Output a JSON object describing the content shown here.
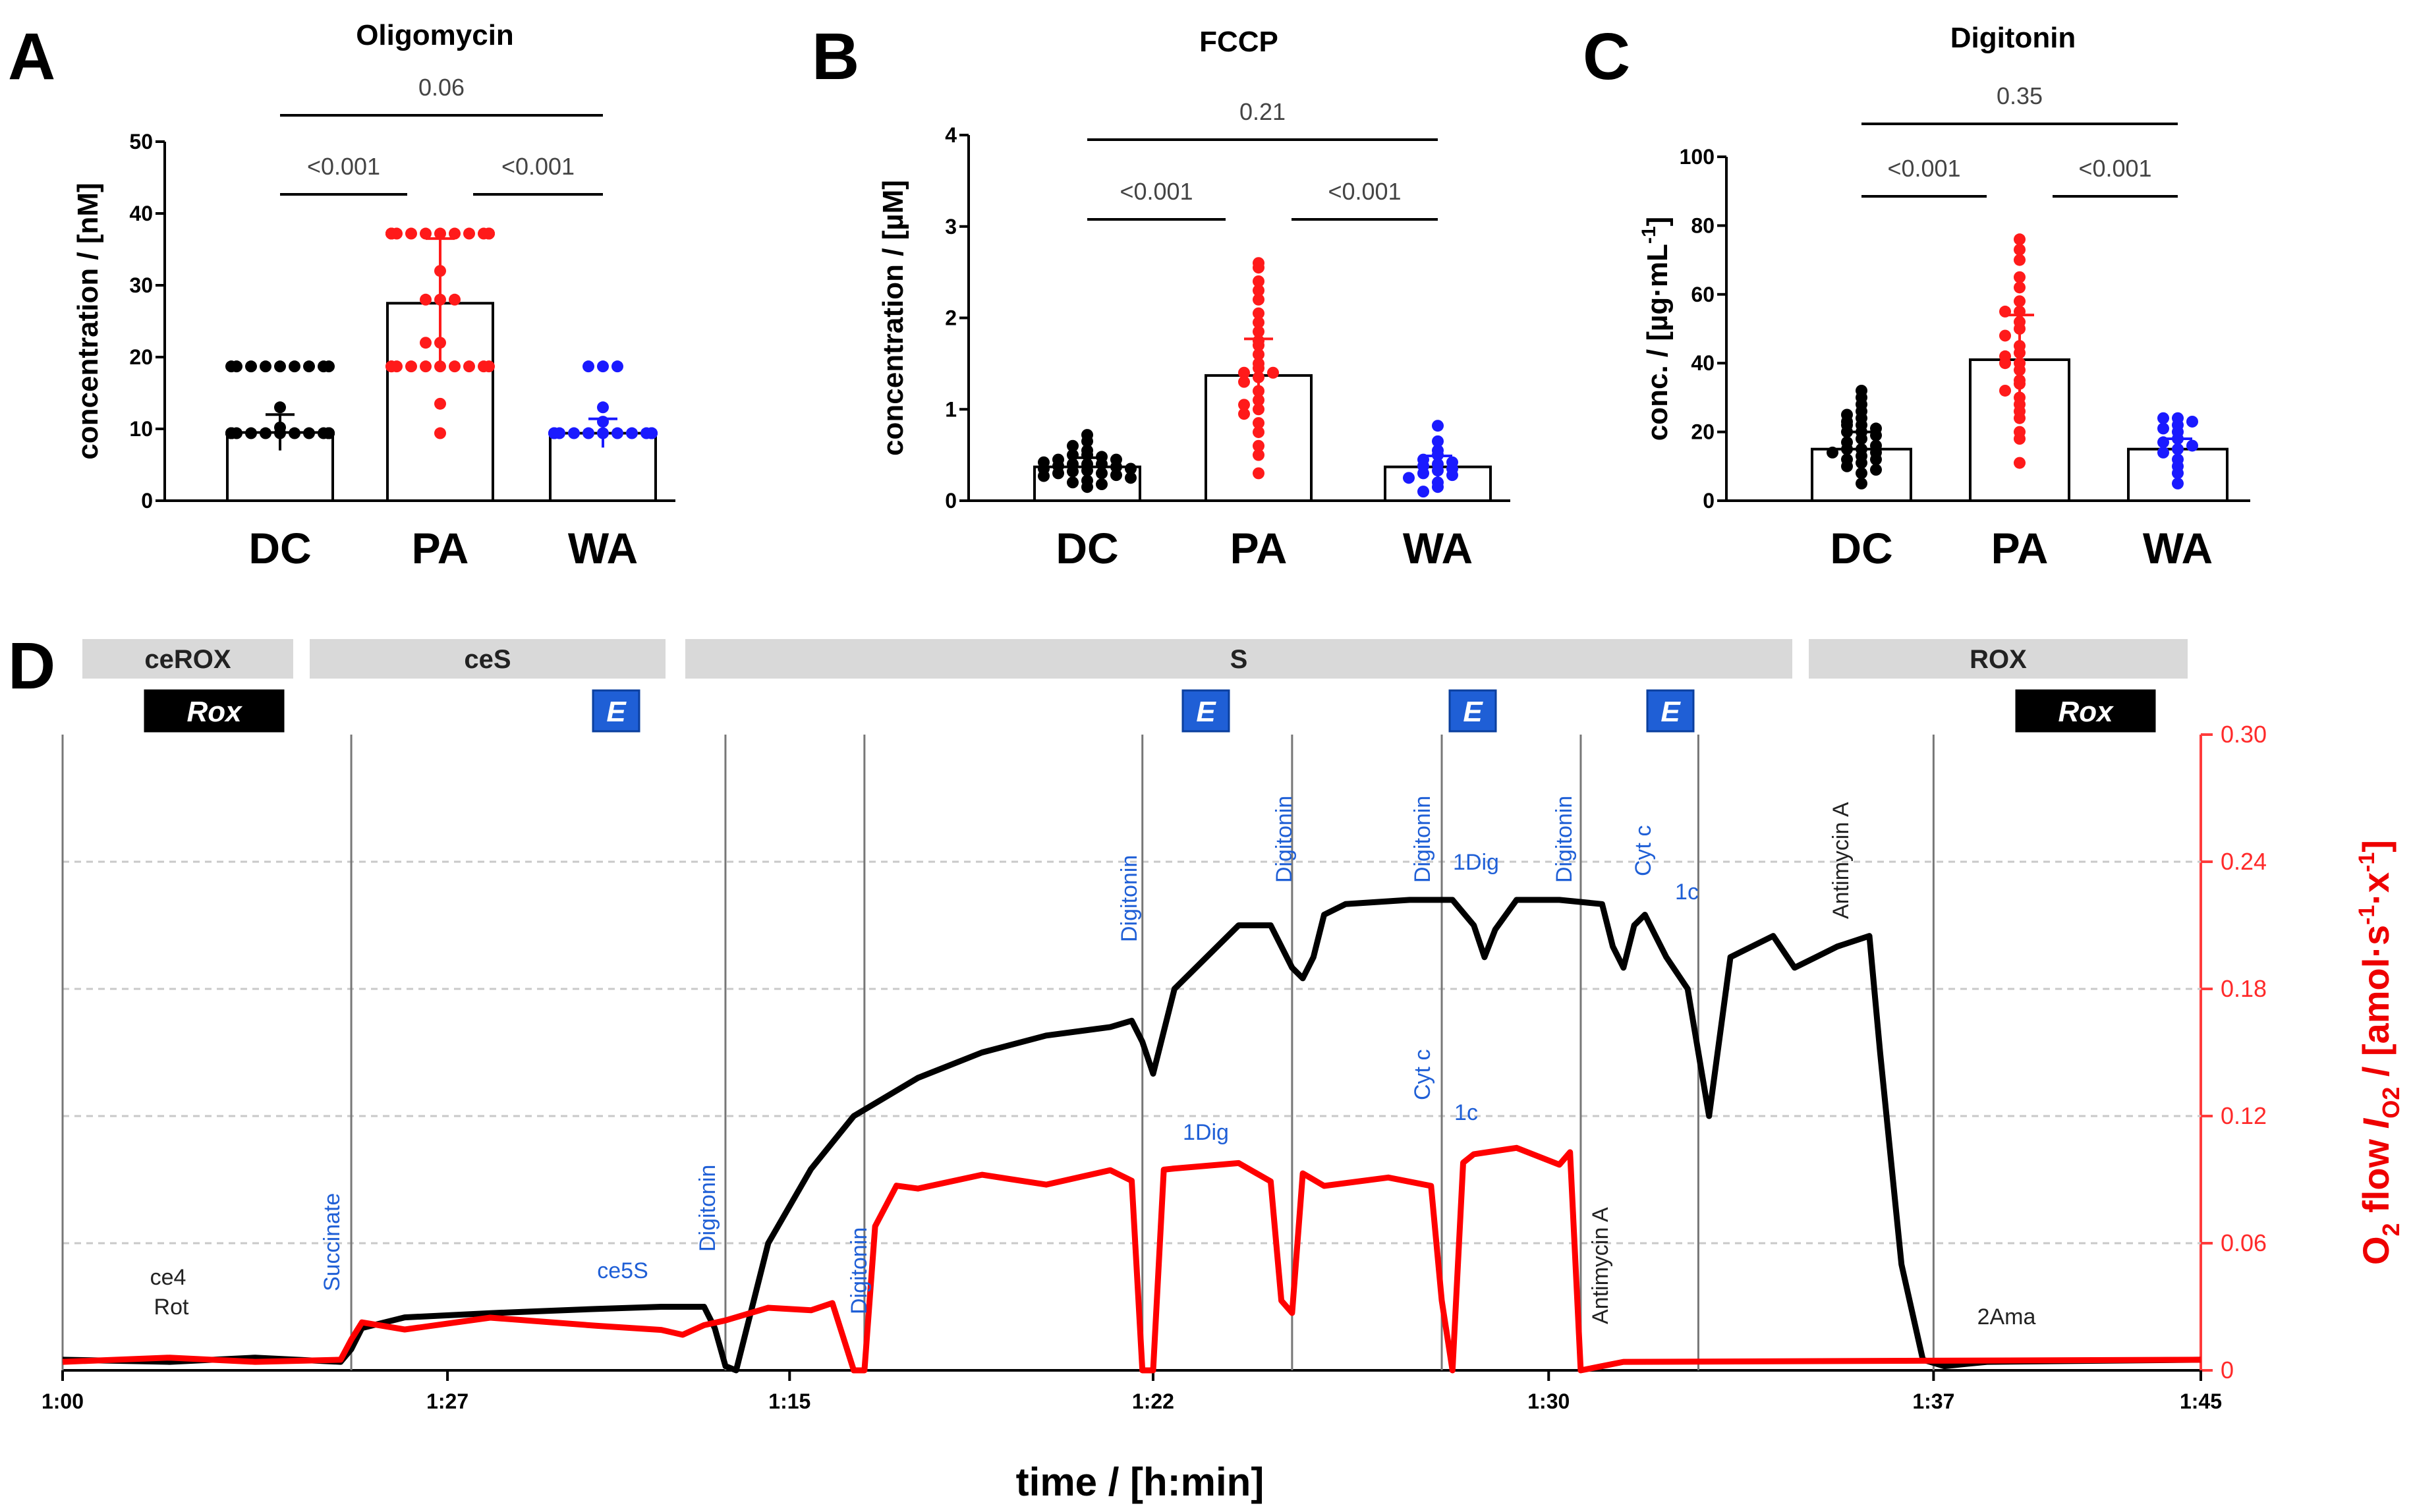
{
  "chart_data": [
    {
      "id": "A",
      "type": "bar",
      "title": "Oligomycin",
      "ylabel": "concentration / [nM]",
      "ylim": [
        0,
        50
      ],
      "yticks": [
        "0",
        "10",
        "20",
        "30",
        "40",
        "50"
      ],
      "categories": [
        "DC",
        "PA",
        "WA"
      ],
      "means": [
        9.5,
        27.5,
        9.4
      ],
      "sd": [
        2.5,
        9.0,
        2.0
      ],
      "colors": [
        "#000000",
        "#ff1a1a",
        "#1a1aff"
      ],
      "points": [
        [
          9.4,
          9.4,
          9.4,
          9.4,
          9.4,
          9.4,
          9.4,
          9.4,
          9.4,
          9.4,
          9.4,
          9.4,
          9.4,
          9.4,
          9.4,
          9.4,
          9.4,
          9.4,
          9.4,
          9.4,
          9.4,
          10.2,
          13.0,
          18.7,
          18.7,
          18.7,
          18.7,
          18.7,
          18.7,
          18.7,
          18.7,
          18.7
        ],
        [
          37.2,
          37.2,
          37.2,
          37.2,
          37.2,
          37.2,
          37.2,
          37.2,
          37.2,
          37.2,
          37.2,
          37.2,
          37.2,
          37.2,
          32.0,
          28.0,
          28.0,
          28.0,
          22.0,
          22.0,
          18.7,
          18.7,
          18.7,
          18.7,
          18.7,
          18.7,
          18.7,
          18.7,
          18.7,
          18.7,
          13.5,
          9.4
        ],
        [
          18.7,
          18.7,
          18.7,
          13.0,
          11.0,
          9.4,
          9.4,
          9.4,
          9.4,
          9.4,
          9.4,
          9.4,
          9.4,
          9.4,
          9.4,
          9.4,
          9.4,
          9.4
        ]
      ],
      "comparisons": [
        {
          "from": 0,
          "to": 1,
          "label": "<0.001"
        },
        {
          "from": 1,
          "to": 2,
          "label": "<0.001"
        },
        {
          "from": 0,
          "to": 2,
          "label": "0.06"
        }
      ]
    },
    {
      "id": "B",
      "type": "bar",
      "title": "FCCP",
      "ylabel": "concentration / [µM]",
      "ylim": [
        0,
        4
      ],
      "yticks": [
        "0",
        "1",
        "2",
        "3",
        "4"
      ],
      "categories": [
        "DC",
        "PA",
        "WA"
      ],
      "means": [
        0.37,
        1.37,
        0.37
      ],
      "sd": [
        0.1,
        0.4,
        0.12
      ],
      "colors": [
        "#000000",
        "#ff1a1a",
        "#1a1aff"
      ],
      "points": [
        [
          0.72,
          0.65,
          0.6,
          0.55,
          0.5,
          0.5,
          0.48,
          0.45,
          0.45,
          0.42,
          0.4,
          0.4,
          0.4,
          0.38,
          0.37,
          0.35,
          0.35,
          0.33,
          0.32,
          0.3,
          0.3,
          0.28,
          0.27,
          0.25,
          0.22,
          0.2,
          0.18,
          0.15
        ],
        [
          2.6,
          2.55,
          2.4,
          2.3,
          2.2,
          2.05,
          1.95,
          1.85,
          1.75,
          1.7,
          1.6,
          1.5,
          1.45,
          1.4,
          1.4,
          1.35,
          1.3,
          1.2,
          1.1,
          1.05,
          1.0,
          0.95,
          0.85,
          0.75,
          0.6,
          0.5,
          0.3
        ],
        [
          0.82,
          0.65,
          0.55,
          0.5,
          0.45,
          0.42,
          0.4,
          0.38,
          0.35,
          0.33,
          0.3,
          0.28,
          0.25,
          0.2,
          0.15,
          0.1
        ]
      ],
      "comparisons": [
        {
          "from": 0,
          "to": 1,
          "label": "<0.001"
        },
        {
          "from": 1,
          "to": 2,
          "label": "<0.001"
        },
        {
          "from": 0,
          "to": 2,
          "label": "0.21"
        }
      ]
    },
    {
      "id": "C",
      "type": "bar",
      "title": "Digitonin",
      "ylabel": "conc. / [µg·mL",
      "ylabel_sup": "-1",
      "ylabel_end": "]",
      "ylim": [
        0,
        100
      ],
      "yticks": [
        "0",
        "20",
        "40",
        "60",
        "80",
        "100"
      ],
      "categories": [
        "DC",
        "PA",
        "WA"
      ],
      "means": [
        15,
        41,
        15
      ],
      "sd": [
        5,
        13,
        3
      ],
      "colors": [
        "#000000",
        "#ff1a1a",
        "#1a1aff"
      ],
      "points": [
        [
          32,
          30,
          28,
          26,
          25,
          24,
          23,
          22,
          22,
          21,
          20,
          20,
          19,
          18,
          17,
          16,
          15,
          15,
          14,
          14,
          13,
          12,
          12,
          11,
          10,
          9,
          8,
          5
        ],
        [
          76,
          73,
          70,
          65,
          62,
          58,
          55,
          55,
          52,
          50,
          48,
          45,
          43,
          42,
          40,
          40,
          38,
          35,
          34,
          32,
          30,
          28,
          26,
          24,
          20,
          18,
          11
        ],
        [
          24,
          24,
          23,
          22,
          21,
          20,
          18,
          17,
          16,
          15,
          14,
          12,
          10,
          8,
          5
        ]
      ],
      "comparisons": [
        {
          "from": 0,
          "to": 1,
          "label": "<0.001"
        },
        {
          "from": 1,
          "to": 2,
          "label": "<0.001"
        },
        {
          "from": 0,
          "to": 2,
          "label": "0.35"
        }
      ]
    },
    {
      "id": "D",
      "type": "line",
      "xlabel": "time / [h:min]",
      "ylabel_right": "O2 flow IO2 / [amol·s-1·x-1]",
      "ylabel_parts": {
        "o": "O",
        "o_sub": "2",
        "flow": " flow ",
        "i": "I",
        "i_sub": "O2",
        "unit_open": " / [amol·s",
        "sup1": "-1",
        "unit_mid": "·x",
        "sup2": "-1",
        "unit_close": "]"
      },
      "xticks": [
        "1:00",
        "1:27",
        "1:15",
        "1:22",
        "1:30",
        "1:37",
        "1:45"
      ],
      "ylim_right": [
        0,
        0.3
      ],
      "yticks_right": [
        "0",
        "0.06",
        "0.12",
        "0.18",
        "0.24",
        "0.30"
      ],
      "stages": [
        "ceROX",
        "ceS",
        "S",
        "ROX"
      ],
      "badges": [
        "Rox",
        "E",
        "E",
        "E",
        "E",
        "Rox"
      ],
      "events_black": [
        {
          "label": "ce4",
          "color": "#222222"
        },
        {
          "label": "Rot",
          "color": "#222222"
        },
        {
          "label": "Succinate",
          "color": "#1f5fd6"
        },
        {
          "label": "ce5S",
          "color": "#1f5fd6"
        },
        {
          "label": "Digitonin",
          "color": "#1f5fd6"
        },
        {
          "label": "Digitonin",
          "color": "#1f5fd6"
        },
        {
          "label": "Digitonin",
          "color": "#1f5fd6"
        },
        {
          "label": "Digitonin",
          "color": "#1f5fd6"
        },
        {
          "label": "Digitonin",
          "color": "#1f5fd6"
        },
        {
          "label": "Digitonin",
          "color": "#1f5fd6"
        },
        {
          "label": "1Dig",
          "color": "#1f5fd6"
        },
        {
          "label": "Cyt c",
          "color": "#1f5fd6"
        },
        {
          "label": "1c",
          "color": "#1f5fd6"
        },
        {
          "label": "Antimycin A",
          "color": "#222222"
        },
        {
          "label": "1Dig",
          "color": "#1f5fd6"
        },
        {
          "label": "Cyt c",
          "color": "#1f5fd6"
        },
        {
          "label": "1c",
          "color": "#1f5fd6"
        },
        {
          "label": "Antimycin A",
          "color": "#222222"
        },
        {
          "label": "2Ama",
          "color": "#222222"
        }
      ],
      "series": [
        {
          "name": "black trace (left axis)",
          "color": "#000000",
          "x": [
            0,
            0.05,
            0.09,
            0.13,
            0.135,
            0.14,
            0.16,
            0.2,
            0.25,
            0.28,
            0.29,
            0.3,
            0.305,
            0.31,
            0.315,
            0.32,
            0.33,
            0.35,
            0.37,
            0.4,
            0.43,
            0.46,
            0.49,
            0.5,
            0.505,
            0.51,
            0.52,
            0.55,
            0.565,
            0.575,
            0.58,
            0.585,
            0.59,
            0.6,
            0.63,
            0.65,
            0.66,
            0.665,
            0.67,
            0.68,
            0.7,
            0.72,
            0.725,
            0.73,
            0.735,
            0.74,
            0.745,
            0.75,
            0.76,
            0.77,
            0.78,
            0.8,
            0.81,
            0.82,
            0.83,
            0.845,
            0.85,
            0.86,
            0.87,
            0.88,
            0.89,
            0.9,
            1.0
          ],
          "y": [
            0.005,
            0.004,
            0.006,
            0.004,
            0.01,
            0.02,
            0.025,
            0.027,
            0.029,
            0.03,
            0.03,
            0.03,
            0.02,
            0.002,
            0.0,
            0.02,
            0.06,
            0.095,
            0.12,
            0.138,
            0.15,
            0.158,
            0.162,
            0.165,
            0.155,
            0.14,
            0.18,
            0.21,
            0.21,
            0.19,
            0.185,
            0.195,
            0.215,
            0.22,
            0.222,
            0.222,
            0.21,
            0.195,
            0.208,
            0.222,
            0.222,
            0.22,
            0.2,
            0.19,
            0.21,
            0.215,
            0.205,
            0.195,
            0.18,
            0.12,
            0.195,
            0.205,
            0.19,
            0.195,
            0.2,
            0.205,
            0.15,
            0.05,
            0.005,
            0.002,
            0.003,
            0.004,
            0.005
          ]
        },
        {
          "name": "red trace (right axis)",
          "color": "#ff0000",
          "x": [
            0,
            0.05,
            0.09,
            0.13,
            0.135,
            0.14,
            0.16,
            0.2,
            0.25,
            0.28,
            0.29,
            0.3,
            0.31,
            0.33,
            0.35,
            0.36,
            0.37,
            0.375,
            0.38,
            0.39,
            0.4,
            0.43,
            0.46,
            0.49,
            0.5,
            0.505,
            0.51,
            0.515,
            0.52,
            0.55,
            0.565,
            0.57,
            0.575,
            0.58,
            0.59,
            0.62,
            0.64,
            0.645,
            0.65,
            0.655,
            0.66,
            0.68,
            0.7,
            0.705,
            0.71,
            0.72,
            0.73,
            1.0
          ],
          "y": [
            0.004,
            0.006,
            0.004,
            0.005,
            0.015,
            0.022,
            0.02,
            0.024,
            0.022,
            0.018,
            0.018,
            0.02,
            0.025,
            0.028,
            0.03,
            0.03,
            0.0,
            0.0,
            0.07,
            0.085,
            0.088,
            0.09,
            0.09,
            0.092,
            0.092,
            0.0,
            0.0,
            0.092,
            0.098,
            0.095,
            0.092,
            0.03,
            0.03,
            0.09,
            0.09,
            0.088,
            0.09,
            0.03,
            0.0,
            0.095,
            0.105,
            0.102,
            0.1,
            0.1,
            0.0,
            0.002,
            0.004,
            0.005
          ]
        }
      ]
    }
  ],
  "panel_letters": [
    "A",
    "B",
    "C",
    "D"
  ]
}
